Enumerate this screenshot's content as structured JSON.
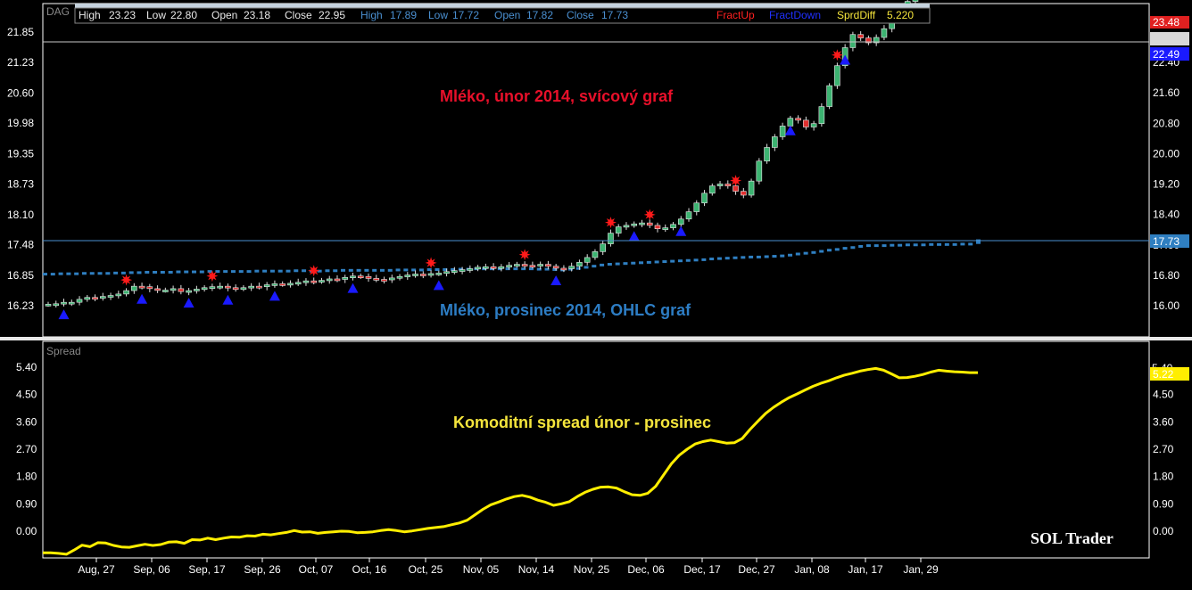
{
  "colors": {
    "background": "#000000",
    "frame": "#ffffff",
    "candle_up": "#3cb371",
    "candle_down": "#e03030",
    "ohlc": "#2f7fc1",
    "fract_up": "#ff1a1a",
    "fract_down": "#1a1aff",
    "spread_line": "#ffee00",
    "label_red": "#e8102a",
    "label_blue": "#2d7dc4",
    "label_yellow": "#f5e53c",
    "price_line": "#4a8fd0"
  },
  "top_panel": {
    "label": "DAG",
    "info": {
      "high1_label": "High",
      "high1": "23.23",
      "low1_label": "Low",
      "low1": "22.80",
      "open1_label": "Open",
      "open1": "23.18",
      "close1_label": "Close",
      "close1": "22.95",
      "high2_label": "High",
      "high2": "17.89",
      "low2_label": "Low",
      "low2": "17.72",
      "open2_label": "Open",
      "open2": "17.82",
      "close2_label": "Close",
      "close2": "17.73",
      "fract_up": "FractUp",
      "fract_down": "FractDown",
      "spread_label": "SprdDiff",
      "spread_value": "5.220"
    },
    "annotation_red": "Mléko, únor 2014, svícový graf",
    "annotation_blue": "Mléko, prosinec 2014, OHLC graf",
    "price_tags": {
      "red": "23.48",
      "white": "",
      "blue": "22.49",
      "ohlc_last": "17.73"
    }
  },
  "bottom_panel": {
    "label": "Spread",
    "annotation": "Komoditní spread únor - prosinec",
    "brand": "SOL Trader",
    "price_tag": "5.22",
    "price_tag_under": "5.40"
  },
  "chart_data": {
    "type": "line",
    "x_ticks": [
      "Aug, 27",
      "Sep, 06",
      "Sep, 17",
      "Sep, 26",
      "Oct, 07",
      "Oct, 16",
      "Oct, 25",
      "Nov, 05",
      "Nov, 14",
      "Nov, 25",
      "Dec, 06",
      "Dec, 17",
      "Dec, 27",
      "Jan, 08",
      "Jan, 17",
      "Jan, 29"
    ],
    "top_left_ticks": [
      "21.85",
      "21.23",
      "20.60",
      "19.98",
      "19.35",
      "18.73",
      "18.10",
      "17.48",
      "16.85",
      "16.23"
    ],
    "top_right_ticks": [
      "22.40",
      "21.60",
      "20.80",
      "20.00",
      "19.20",
      "18.40",
      "17.60",
      "16.80",
      "16.00"
    ],
    "bottom_ticks": [
      "5.40",
      "4.50",
      "3.60",
      "2.70",
      "1.80",
      "0.90",
      "0.00"
    ],
    "bottom_right_ticks": [
      "4.50",
      "3.60",
      "2.70",
      "1.80",
      "0.90",
      "0.00"
    ],
    "feb_candles": {
      "name": "Mléko, únor 2014",
      "ylim": [
        15.95,
        22.31
      ],
      "close": [
        16.26,
        16.27,
        16.3,
        16.3,
        16.36,
        16.4,
        16.39,
        16.42,
        16.44,
        16.47,
        16.54,
        16.63,
        16.62,
        16.58,
        16.55,
        16.55,
        16.58,
        16.52,
        16.54,
        16.57,
        16.6,
        16.62,
        16.63,
        16.6,
        16.58,
        16.6,
        16.63,
        16.62,
        16.66,
        16.68,
        16.67,
        16.69,
        16.71,
        16.74,
        16.73,
        16.75,
        16.78,
        16.77,
        16.81,
        16.84,
        16.83,
        16.79,
        16.77,
        16.76,
        16.8,
        16.83,
        16.86,
        16.88,
        16.87,
        16.89,
        16.9,
        16.93,
        16.95,
        16.97,
        16.99,
        17.02,
        17.03,
        17.01,
        17.03,
        17.06,
        17.08,
        17.06,
        17.05,
        17.08,
        17.04,
        17.0,
        16.99,
        17.04,
        17.12,
        17.22,
        17.34,
        17.5,
        17.72,
        17.85,
        17.88,
        17.91,
        17.93,
        17.88,
        17.81,
        17.83,
        17.9,
        18.01,
        18.16,
        18.34,
        18.54,
        18.69,
        18.73,
        18.69,
        18.58,
        18.5,
        18.79,
        19.2,
        19.48,
        19.7,
        19.92,
        20.08,
        20.04,
        19.9,
        19.97,
        20.32,
        20.75,
        21.16,
        21.53,
        21.8,
        21.73,
        21.63,
        21.74,
        21.92,
        22.12,
        22.28,
        22.48,
        22.64,
        22.85,
        22.92,
        22.6,
        22.74,
        22.95,
        23.05,
        23.0,
        22.95
      ],
      "fract_up_index": [
        10,
        21,
        34,
        49,
        61,
        72,
        77,
        88,
        101,
        115
      ],
      "fract_down_index": [
        2,
        12,
        18,
        23,
        29,
        39,
        50,
        65,
        75,
        81,
        95,
        102,
        117
      ]
    },
    "dec_ohlc": {
      "name": "Mléko, prosinec 2014",
      "close": [
        16.85,
        16.85,
        16.86,
        16.86,
        16.86,
        16.87,
        16.86,
        16.87,
        16.87,
        16.88,
        16.88,
        16.89,
        16.89,
        16.9,
        16.9,
        16.9,
        16.9,
        16.91,
        16.91,
        16.91,
        16.91,
        16.92,
        16.91,
        16.92,
        16.92,
        16.92,
        16.92,
        16.93,
        16.92,
        16.93,
        16.93,
        16.93,
        16.94,
        16.93,
        16.93,
        16.93,
        16.94,
        16.94,
        16.95,
        16.95,
        16.95,
        16.95,
        16.95,
        16.95,
        16.95,
        16.96,
        16.96,
        16.96,
        16.96,
        16.97,
        16.97,
        16.97,
        16.97,
        16.98,
        16.98,
        16.99,
        16.98,
        16.99,
        16.99,
        16.99,
        16.99,
        16.99,
        16.98,
        16.98,
        16.97,
        16.96,
        16.96,
        16.98,
        17.0,
        17.03,
        17.06,
        17.09,
        17.11,
        17.12,
        17.13,
        17.14,
        17.15,
        17.16,
        17.17,
        17.18,
        17.19,
        17.2,
        17.21,
        17.22,
        17.23,
        17.25,
        17.26,
        17.27,
        17.28,
        17.29,
        17.3,
        17.3,
        17.31,
        17.32,
        17.33,
        17.35,
        17.38,
        17.4,
        17.42,
        17.45,
        17.48,
        17.5,
        17.53,
        17.55,
        17.58,
        17.6,
        17.6,
        17.6,
        17.61,
        17.61,
        17.62,
        17.62,
        17.62,
        17.63,
        17.63,
        17.63,
        17.63,
        17.64,
        17.64,
        17.73
      ]
    },
    "spread": {
      "name": "Spread",
      "ylim": [
        -0.65,
        5.85
      ],
      "values": [
        -0.71,
        -0.71,
        -0.73,
        -0.76,
        -0.62,
        -0.46,
        -0.51,
        -0.38,
        -0.39,
        -0.47,
        -0.52,
        -0.53,
        -0.48,
        -0.43,
        -0.47,
        -0.44,
        -0.36,
        -0.35,
        -0.4,
        -0.28,
        -0.29,
        -0.23,
        -0.28,
        -0.23,
        -0.19,
        -0.2,
        -0.15,
        -0.16,
        -0.1,
        -0.12,
        -0.08,
        -0.04,
        0.02,
        -0.03,
        -0.02,
        -0.07,
        -0.04,
        -0.02,
        0.0,
        -0.01,
        -0.05,
        -0.04,
        -0.02,
        0.02,
        0.05,
        0.02,
        -0.02,
        0.01,
        0.05,
        0.09,
        0.12,
        0.15,
        0.21,
        0.27,
        0.36,
        0.54,
        0.72,
        0.87,
        0.96,
        1.06,
        1.14,
        1.18,
        1.12,
        1.02,
        0.95,
        0.85,
        0.9,
        0.97,
        1.14,
        1.28,
        1.38,
        1.45,
        1.46,
        1.42,
        1.3,
        1.2,
        1.18,
        1.25,
        1.48,
        1.85,
        2.22,
        2.5,
        2.7,
        2.87,
        2.95,
        3.0,
        2.95,
        2.9,
        2.91,
        3.05,
        3.35,
        3.62,
        3.88,
        4.08,
        4.25,
        4.4,
        4.52,
        4.65,
        4.77,
        4.87,
        4.95,
        5.05,
        5.14,
        5.2,
        5.27,
        5.32,
        5.36,
        5.3,
        5.18,
        5.05,
        5.06,
        5.1,
        5.16,
        5.24,
        5.3,
        5.27,
        5.25,
        5.24,
        5.22,
        5.22
      ]
    }
  }
}
